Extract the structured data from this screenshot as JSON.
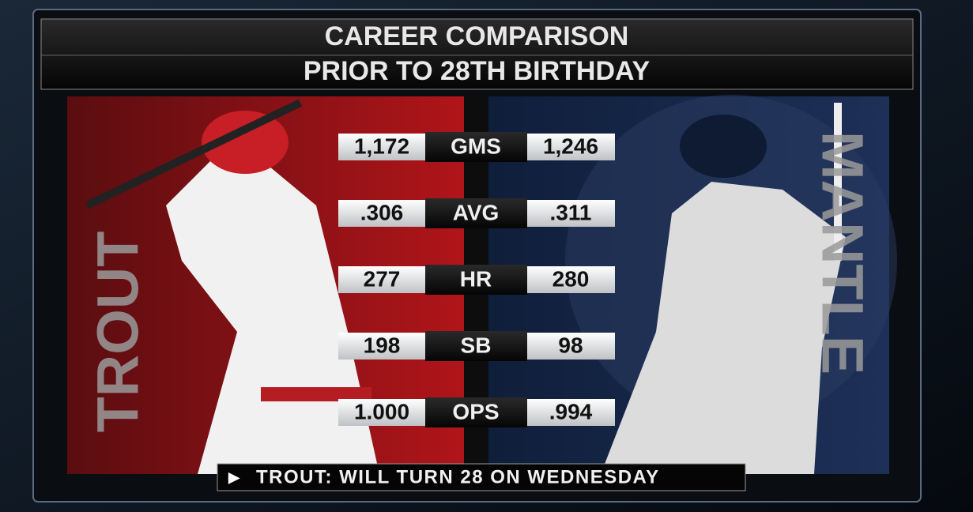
{
  "header": {
    "title": "CAREER COMPARISON",
    "subtitle": "PRIOR TO 28TH BIRTHDAY"
  },
  "players": {
    "left": "TROUT",
    "right": "MANTLE"
  },
  "table": {
    "rows": [
      {
        "left": "1,172",
        "stat": "GMS",
        "right": "1,246"
      },
      {
        "left": ".306",
        "stat": "AVG",
        "right": ".311"
      },
      {
        "left": "277",
        "stat": "HR",
        "right": "280"
      },
      {
        "left": "198",
        "stat": "SB",
        "right": "98"
      },
      {
        "left": "1.000",
        "stat": "OPS",
        "right": ".994"
      }
    ]
  },
  "ticker": {
    "marker": "▶",
    "text": "TROUT: WILL TURN 28 ON WEDNESDAY"
  }
}
